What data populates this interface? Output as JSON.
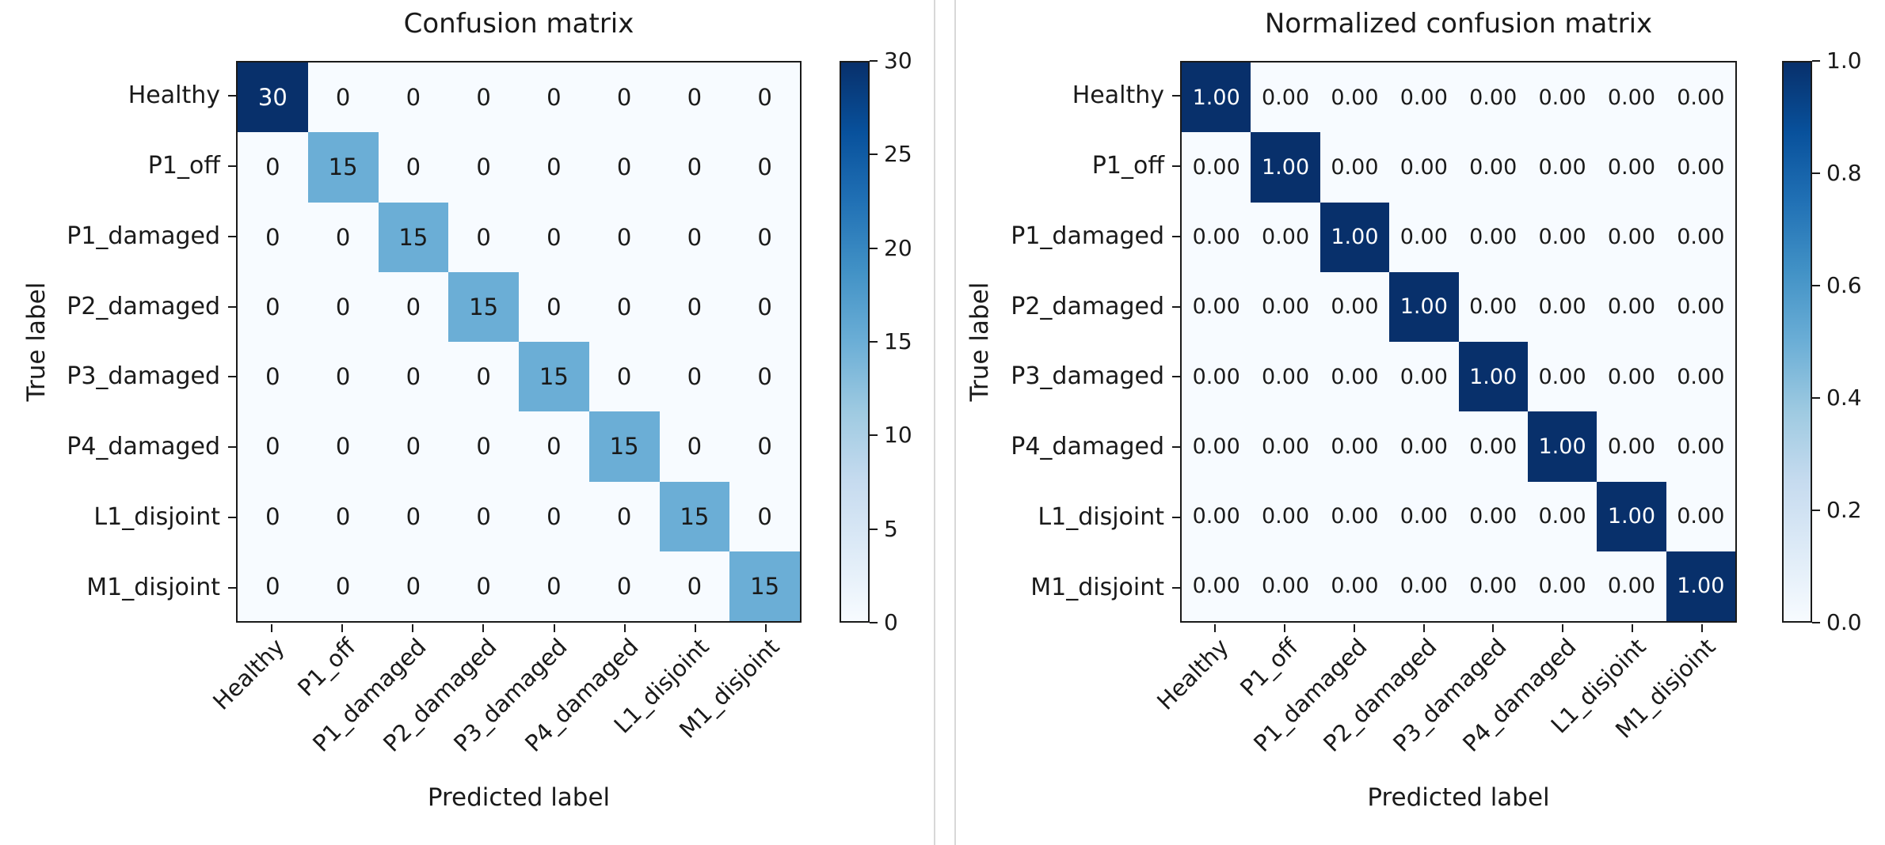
{
  "colors": {
    "colormap_low": "#f7fbff",
    "colormap_mid": "#6baed6",
    "colormap_high": "#08306b",
    "cell_text_dark": "#1a1a1a",
    "cell_text_light": "#ffffff",
    "axis": "#1a1a1a",
    "divider": "#d8d8d8"
  },
  "chart_data": [
    {
      "type": "heatmap",
      "title": "Confusion matrix",
      "xlabel": "Predicted label",
      "ylabel": "True label",
      "x_tick_labels": [
        "Healthy",
        "P1_off",
        "P1_damaged",
        "P2_damaged",
        "P3_damaged",
        "P4_damaged",
        "L1_disjoint",
        "M1_disjoint"
      ],
      "y_tick_labels": [
        "Healthy",
        "P1_off",
        "P1_damaged",
        "P2_damaged",
        "P3_damaged",
        "P4_damaged",
        "L1_disjoint",
        "M1_disjoint"
      ],
      "matrix": [
        [
          30,
          0,
          0,
          0,
          0,
          0,
          0,
          0
        ],
        [
          0,
          15,
          0,
          0,
          0,
          0,
          0,
          0
        ],
        [
          0,
          0,
          15,
          0,
          0,
          0,
          0,
          0
        ],
        [
          0,
          0,
          0,
          15,
          0,
          0,
          0,
          0
        ],
        [
          0,
          0,
          0,
          0,
          15,
          0,
          0,
          0
        ],
        [
          0,
          0,
          0,
          0,
          0,
          15,
          0,
          0
        ],
        [
          0,
          0,
          0,
          0,
          0,
          0,
          15,
          0
        ],
        [
          0,
          0,
          0,
          0,
          0,
          0,
          0,
          15
        ]
      ],
      "cell_label_format": "int",
      "vmin": 0,
      "vmax": 30,
      "colorbar_tick_values": [
        0,
        5,
        10,
        15,
        20,
        25,
        30
      ],
      "colorbar_tick_labels": [
        "0",
        "5",
        "10",
        "15",
        "20",
        "25",
        "30"
      ],
      "colormap": "Blues",
      "grid": false,
      "legend_position": "right-colorbar"
    },
    {
      "type": "heatmap",
      "title": "Normalized confusion matrix",
      "xlabel": "Predicted label",
      "ylabel": "True label",
      "x_tick_labels": [
        "Healthy",
        "P1_off",
        "P1_damaged",
        "P2_damaged",
        "P3_damaged",
        "P4_damaged",
        "L1_disjoint",
        "M1_disjoint"
      ],
      "y_tick_labels": [
        "Healthy",
        "P1_off",
        "P1_damaged",
        "P2_damaged",
        "P3_damaged",
        "P4_damaged",
        "L1_disjoint",
        "M1_disjoint"
      ],
      "matrix": [
        [
          1.0,
          0.0,
          0.0,
          0.0,
          0.0,
          0.0,
          0.0,
          0.0
        ],
        [
          0.0,
          1.0,
          0.0,
          0.0,
          0.0,
          0.0,
          0.0,
          0.0
        ],
        [
          0.0,
          0.0,
          1.0,
          0.0,
          0.0,
          0.0,
          0.0,
          0.0
        ],
        [
          0.0,
          0.0,
          0.0,
          1.0,
          0.0,
          0.0,
          0.0,
          0.0
        ],
        [
          0.0,
          0.0,
          0.0,
          0.0,
          1.0,
          0.0,
          0.0,
          0.0
        ],
        [
          0.0,
          0.0,
          0.0,
          0.0,
          0.0,
          1.0,
          0.0,
          0.0
        ],
        [
          0.0,
          0.0,
          0.0,
          0.0,
          0.0,
          0.0,
          1.0,
          0.0
        ],
        [
          0.0,
          0.0,
          0.0,
          0.0,
          0.0,
          0.0,
          0.0,
          1.0
        ]
      ],
      "cell_label_format": "2f",
      "vmin": 0.0,
      "vmax": 1.0,
      "colorbar_tick_values": [
        0.0,
        0.2,
        0.4,
        0.6,
        0.8,
        1.0
      ],
      "colorbar_tick_labels": [
        "0.0",
        "0.2",
        "0.4",
        "0.6",
        "0.8",
        "1.0"
      ],
      "colormap": "Blues",
      "grid": false,
      "legend_position": "right-colorbar"
    }
  ]
}
